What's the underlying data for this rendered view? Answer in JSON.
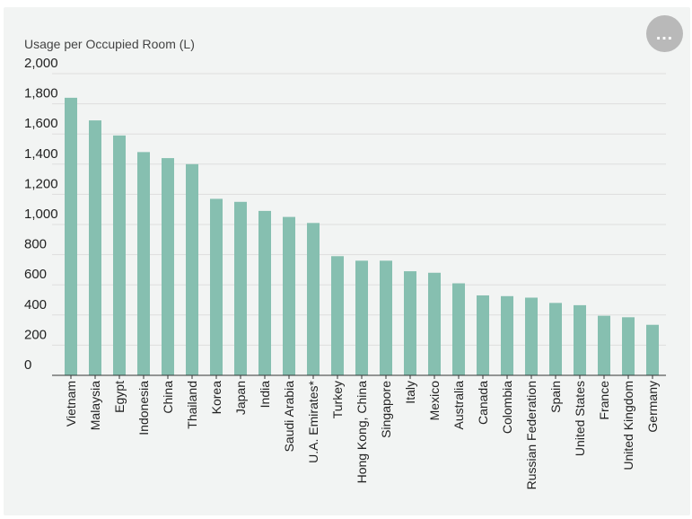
{
  "menu": {
    "more_icon": "…"
  },
  "chart_data": {
    "type": "bar",
    "ylabel": "Usage per Occupied Room (L)",
    "ylim": [
      0,
      2000
    ],
    "yticks": [
      0,
      200,
      400,
      600,
      800,
      1000,
      1200,
      1400,
      1600,
      1800,
      2000
    ],
    "ytick_labels": [
      "0",
      "200",
      "400",
      "600",
      "800",
      "1,000",
      "1,200",
      "1,400",
      "1,600",
      "1,800",
      "2,000"
    ],
    "categories": [
      "Vietnam",
      "Malaysia",
      "Egypt",
      "Indonesia",
      "China",
      "Thailand",
      "Korea",
      "Japan",
      "India",
      "Saudi Arabia",
      "U.A. Emirates*",
      "Turkey",
      "Hong Kong, China",
      "Singapore",
      "Italy",
      "Mexico",
      "Australia",
      "Canada",
      "Colombia",
      "Russian Federation",
      "Spain",
      "United States",
      "France",
      "United Kingdom",
      "Germany"
    ],
    "values": [
      1840,
      1690,
      1590,
      1480,
      1440,
      1400,
      1170,
      1150,
      1090,
      1050,
      1010,
      790,
      760,
      760,
      690,
      680,
      610,
      530,
      525,
      515,
      480,
      465,
      395,
      385,
      335
    ],
    "bar_color": "#86bfb0",
    "grid": true
  }
}
